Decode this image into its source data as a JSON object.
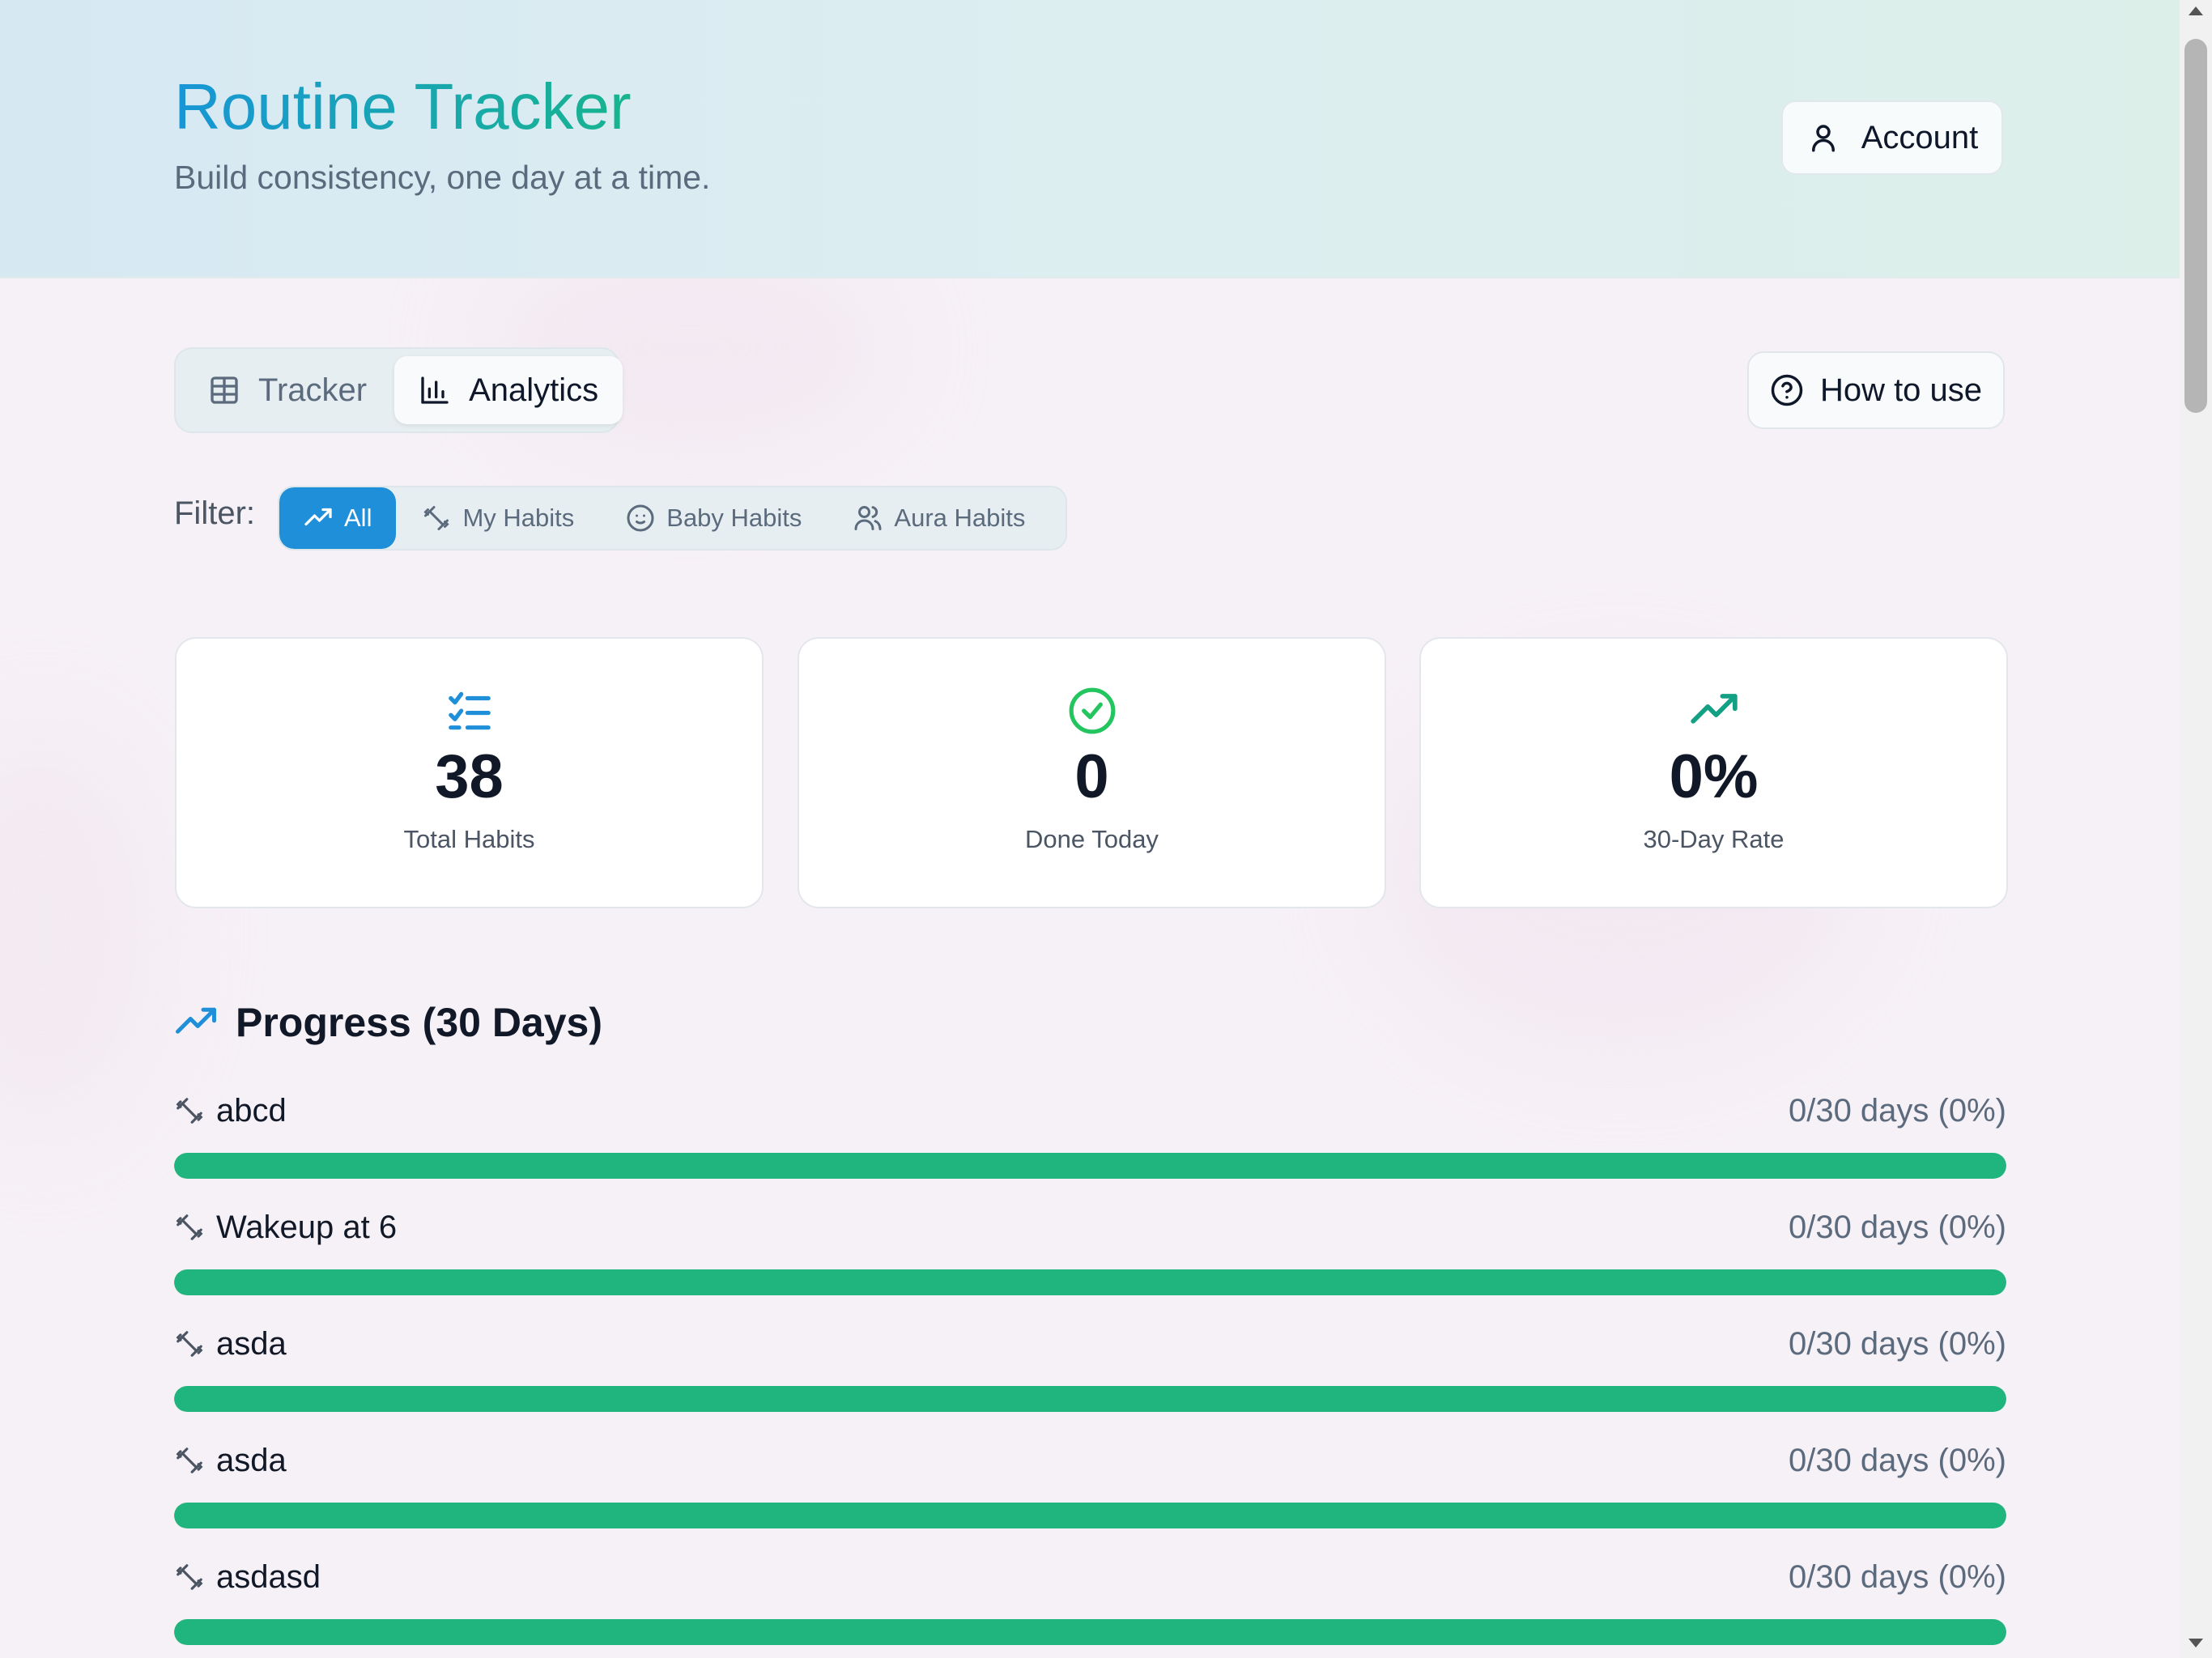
{
  "header": {
    "title": "Routine Tracker",
    "subtitle": "Build consistency, one day at a time.",
    "account_label": "Account"
  },
  "view_tabs": [
    {
      "label": "Tracker",
      "icon": "table-icon",
      "active": false
    },
    {
      "label": "Analytics",
      "icon": "bar-chart-icon",
      "active": true
    }
  ],
  "how_to_label": "How to use",
  "filter": {
    "label": "Filter:",
    "options": [
      {
        "label": "All",
        "icon": "trending-up-icon",
        "active": true
      },
      {
        "label": "My Habits",
        "icon": "dumbbell-icon",
        "active": false
      },
      {
        "label": "Baby Habits",
        "icon": "baby-icon",
        "active": false
      },
      {
        "label": "Aura Habits",
        "icon": "users-icon",
        "active": false
      }
    ]
  },
  "stats": [
    {
      "value": "38",
      "label": "Total Habits",
      "icon": "list-checks-icon"
    },
    {
      "value": "0",
      "label": "Done Today",
      "icon": "check-circle-icon"
    },
    {
      "value": "0%",
      "label": "30-Day Rate",
      "icon": "trending-up-icon"
    }
  ],
  "progress": {
    "title": "Progress (30 Days)",
    "items": [
      {
        "name": "abcd",
        "count": "0/30 days (0%)",
        "completed_fraction": 0
      },
      {
        "name": "Wakeup at 6",
        "count": "0/30 days (0%)",
        "completed_fraction": 0
      },
      {
        "name": "asda",
        "count": "0/30 days (0%)",
        "completed_fraction": 0
      },
      {
        "name": "asda",
        "count": "0/30 days (0%)",
        "completed_fraction": 0
      },
      {
        "name": "asdasd",
        "count": "0/30 days (0%)",
        "completed_fraction": 0
      }
    ]
  },
  "colors": {
    "accent_blue": "#1e8fd8",
    "accent_green": "#20b57f",
    "check_green": "#22c55e",
    "teal": "#14a085"
  }
}
